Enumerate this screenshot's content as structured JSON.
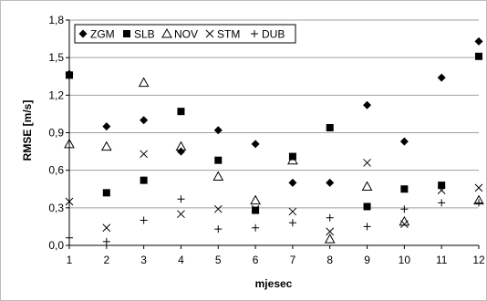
{
  "chart_data": {
    "type": "scatter",
    "xlabel": "mjesec",
    "ylabel": "RMSE [m/s]",
    "xlim": [
      1,
      12
    ],
    "ylim": [
      0,
      1.8
    ],
    "x_ticks": [
      1,
      2,
      3,
      4,
      5,
      6,
      7,
      8,
      9,
      10,
      11,
      12
    ],
    "y_ticks": [
      "0,0",
      "0,3",
      "0,6",
      "0,9",
      "1,2",
      "1,5",
      "1,8"
    ],
    "grid": "horizontal",
    "legend_position": "top-left",
    "x": [
      1,
      2,
      3,
      4,
      5,
      6,
      7,
      8,
      9,
      10,
      11,
      12
    ],
    "series": [
      {
        "name": "ZGM",
        "marker": "diamond",
        "values": [
          1.37,
          0.95,
          1.0,
          0.75,
          0.92,
          0.81,
          0.5,
          0.5,
          1.12,
          0.83,
          1.34,
          1.63
        ]
      },
      {
        "name": "SLB",
        "marker": "square",
        "values": [
          1.36,
          0.42,
          0.52,
          1.07,
          0.68,
          0.28,
          0.71,
          0.94,
          0.31,
          0.45,
          0.48,
          1.51
        ]
      },
      {
        "name": "NOV",
        "marker": "triangle",
        "values": [
          0.81,
          0.79,
          1.3,
          0.79,
          0.55,
          0.36,
          0.68,
          0.05,
          0.47,
          0.19,
          null,
          0.36
        ]
      },
      {
        "name": "STM",
        "marker": "x",
        "values": [
          0.35,
          0.14,
          0.73,
          0.25,
          0.29,
          0.29,
          0.27,
          0.11,
          0.66,
          0.17,
          0.44,
          0.46
        ]
      },
      {
        "name": "DUB",
        "marker": "plus",
        "values": [
          0.06,
          0.03,
          0.2,
          0.37,
          0.13,
          0.14,
          0.18,
          0.22,
          0.15,
          0.29,
          0.34,
          0.34
        ]
      }
    ]
  }
}
